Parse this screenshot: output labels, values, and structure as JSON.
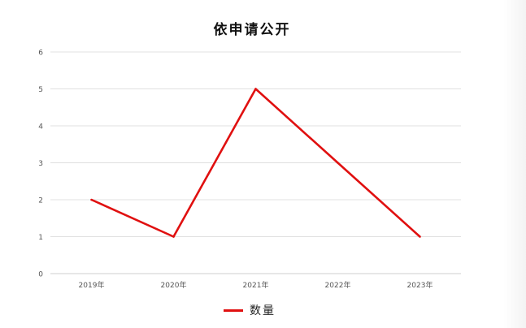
{
  "chart_data": {
    "type": "line",
    "title": "依申请公开",
    "categories": [
      "2019年",
      "2020年",
      "2021年",
      "2022年",
      "2023年"
    ],
    "series": [
      {
        "name": "数量",
        "values": [
          2,
          1,
          5,
          3,
          1
        ],
        "color": "#e01010"
      }
    ],
    "ylim": [
      0,
      6
    ],
    "yticks": [
      "0",
      "1",
      "2",
      "3",
      "4",
      "5",
      "6"
    ],
    "xlabel": "",
    "ylabel": "",
    "grid": true,
    "legend": "bottom"
  }
}
